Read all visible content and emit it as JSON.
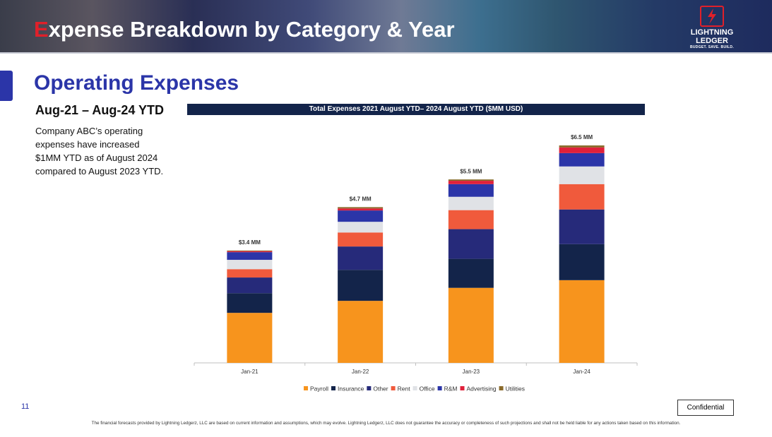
{
  "header": {
    "title": "Expense Breakdown by Category & Year",
    "logo": {
      "line1": "LIGHTNING",
      "line2": "LEDGER",
      "tagline": "BUDGET. SAVE. BUILD."
    }
  },
  "section_title": "Operating Expenses",
  "period": "Aug-21 – Aug-24 YTD",
  "summary": "Company ABC’s operating expenses have increased $1MM YTD as of August 2024 compared to August 2023 YTD.",
  "chart_data": {
    "type": "stacked_bar",
    "title": "Total Expenses 2021 August YTD– 2024 August YTD ($MM USD)",
    "categories": [
      "Jan-21",
      "Jan-22",
      "Jan-23",
      "Jan-24"
    ],
    "series": [
      {
        "name": "Payroll",
        "color": "#f7941d",
        "values": [
          1.5,
          1.86,
          2.25,
          2.48
        ]
      },
      {
        "name": "Insurance",
        "color": "#13244a",
        "values": [
          0.59,
          0.93,
          0.87,
          1.08
        ]
      },
      {
        "name": "Other",
        "color": "#262a7a",
        "values": [
          0.47,
          0.7,
          0.89,
          1.04
        ]
      },
      {
        "name": "Rent",
        "color": "#f05a3c",
        "values": [
          0.25,
          0.42,
          0.57,
          0.76
        ]
      },
      {
        "name": "Office",
        "color": "#e0e2e6",
        "values": [
          0.28,
          0.32,
          0.4,
          0.53
        ]
      },
      {
        "name": "R&M",
        "color": "#2b35a8",
        "values": [
          0.23,
          0.34,
          0.38,
          0.4
        ]
      },
      {
        "name": "Advertising",
        "color": "#e0203a",
        "values": [
          0.03,
          0.06,
          0.1,
          0.17
        ]
      },
      {
        "name": "Utilities",
        "color": "#8a6a2a",
        "values": [
          0.02,
          0.04,
          0.04,
          0.06
        ]
      }
    ],
    "totals": {
      "values": [
        3.4,
        4.7,
        5.5,
        6.5
      ],
      "value_labels": [
        "$3.4 MM",
        "$4.7 MM",
        "$5.5 MM",
        "$6.5 MM"
      ]
    },
    "legend": "bottom"
  },
  "page_number": "11",
  "confidential": "Confidential",
  "disclaimer": "The financial forecasts provided by Lightning Ledgerz, LLC are based on current information and assumptions, which may evolve. Lightning Ledgerz, LLC does not guarantee the accuracy or completeness of such projections and shall not be held liable for any actions taken based on this information."
}
